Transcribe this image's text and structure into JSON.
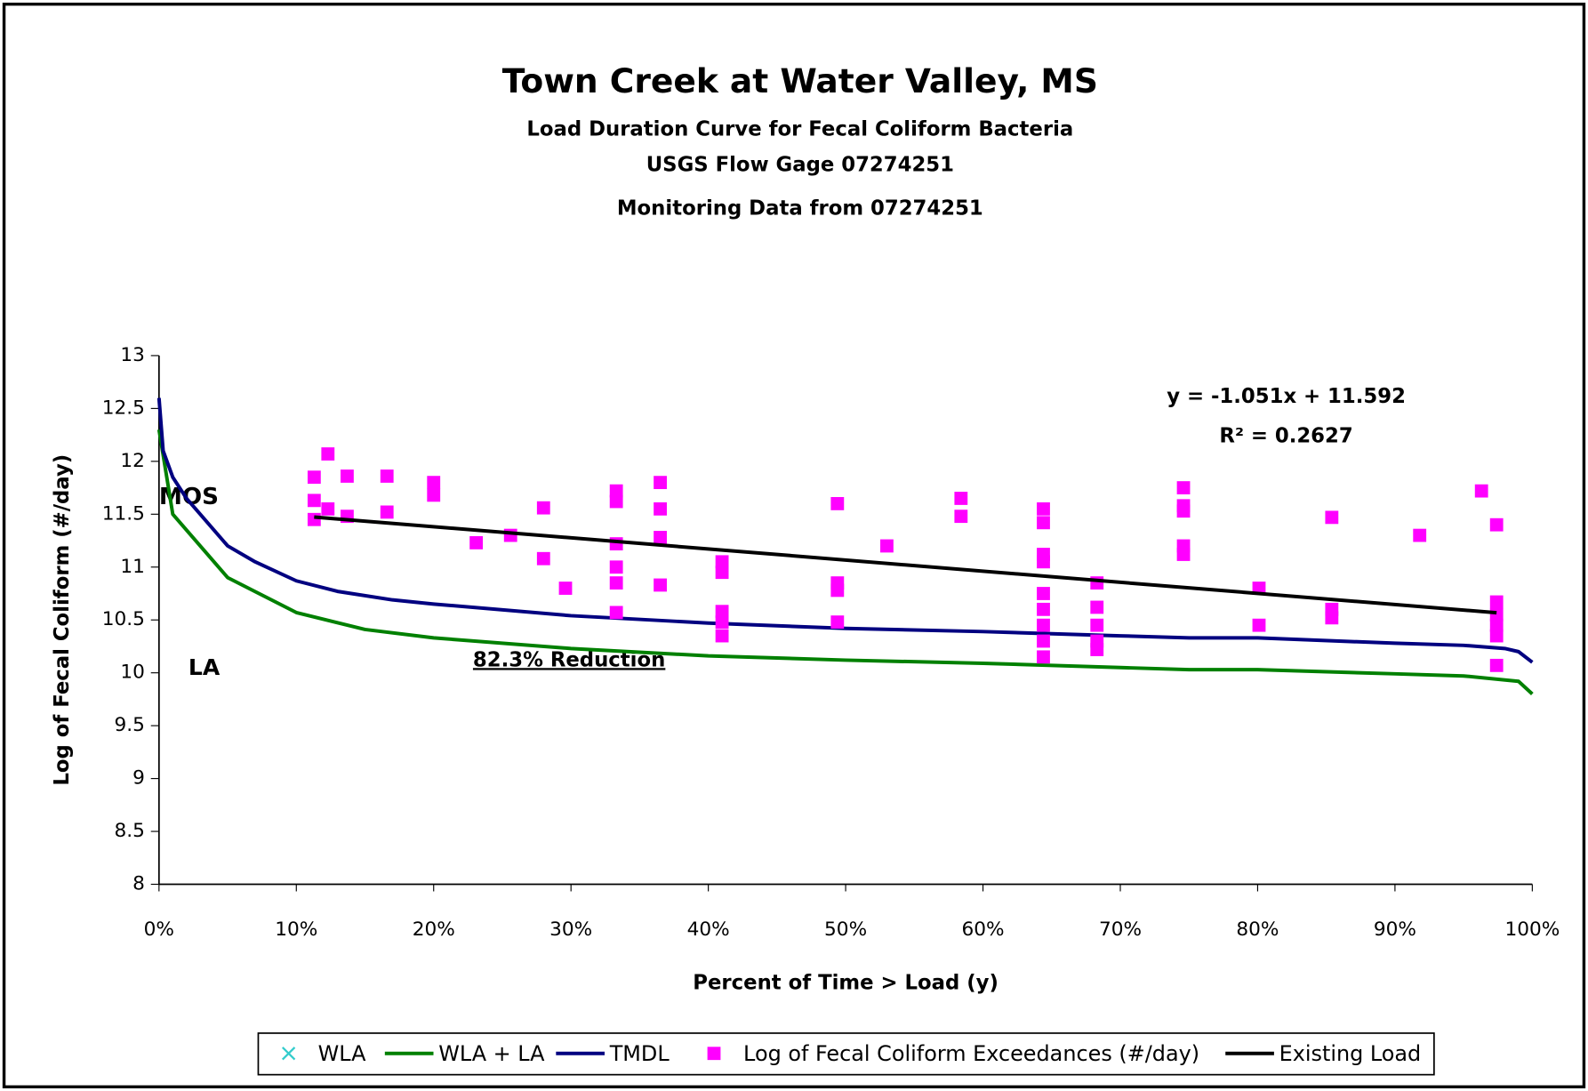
{
  "chart_data": {
    "type": "line",
    "title": "Town Creek at Water Valley, MS",
    "subtitles": [
      "Load Duration Curve for Fecal Coliform Bacteria",
      "USGS Flow Gage 07274251",
      "Monitoring Data from 07274251"
    ],
    "x_label": "Percent of Time > Load (y)",
    "y_label": "Log of Fecal Coliform (#/day)",
    "annotations": [
      "y = -1.051x + 11.592",
      "R² = 0.2627",
      "MOS",
      "LA",
      "82.3% Reduction"
    ],
    "xlim": [
      0,
      1
    ],
    "ylim": [
      8,
      13
    ],
    "xticks": [
      {
        "value": 0,
        "label": "0%"
      },
      {
        "value": 0.1,
        "label": "10%"
      },
      {
        "value": 0.2,
        "label": "20%"
      },
      {
        "value": 0.3,
        "label": "30%"
      },
      {
        "value": 0.4,
        "label": "40%"
      },
      {
        "value": 0.5,
        "label": "50%"
      },
      {
        "value": 0.6,
        "label": "60%"
      },
      {
        "value": 0.7,
        "label": "70%"
      },
      {
        "value": 0.8,
        "label": "80%"
      },
      {
        "value": 0.9,
        "label": "90%"
      },
      {
        "value": 1,
        "label": "100%"
      }
    ],
    "yticks": [
      8,
      8.5,
      9,
      9.5,
      10,
      10.5,
      11,
      11.5,
      12,
      12.5,
      13
    ],
    "series": [
      {
        "name": "WLA",
        "type": "scatter",
        "marker": "x",
        "color": "#33cccc",
        "x": [],
        "values": []
      },
      {
        "name": "WLA + LA",
        "type": "line",
        "color": "#008000",
        "x": [
          0,
          0.005,
          0.01,
          0.05,
          0.1,
          0.15,
          0.2,
          0.3,
          0.4,
          0.5,
          0.6,
          0.7,
          0.75,
          0.8,
          0.9,
          0.95,
          0.99,
          1
        ],
        "values": [
          12.3,
          11.9,
          11.5,
          10.9,
          10.57,
          10.41,
          10.33,
          10.23,
          10.16,
          10.12,
          10.09,
          10.05,
          10.03,
          10.03,
          9.99,
          9.97,
          9.92,
          9.8
        ]
      },
      {
        "name": "TMDL",
        "type": "line",
        "color": "#000080",
        "x": [
          0,
          0.003,
          0.01,
          0.02,
          0.05,
          0.07,
          0.1,
          0.13,
          0.17,
          0.2,
          0.3,
          0.4,
          0.5,
          0.6,
          0.7,
          0.75,
          0.8,
          0.9,
          0.95,
          0.98,
          0.99,
          1
        ],
        "values": [
          12.6,
          12.1,
          11.85,
          11.65,
          11.2,
          11.05,
          10.87,
          10.77,
          10.69,
          10.65,
          10.54,
          10.47,
          10.42,
          10.39,
          10.35,
          10.33,
          10.33,
          10.28,
          10.26,
          10.23,
          10.2,
          10.1
        ]
      },
      {
        "name": "Log of Fecal Coliform Exceedances (#/day)",
        "type": "scatter",
        "marker": "square",
        "color": "#ff00ff",
        "x": [
          0.113,
          0.113,
          0.113,
          0.123,
          0.123,
          0.137,
          0.137,
          0.166,
          0.166,
          0.2,
          0.2,
          0.231,
          0.256,
          0.28,
          0.28,
          0.296,
          0.333,
          0.333,
          0.333,
          0.333,
          0.333,
          0.333,
          0.365,
          0.365,
          0.365,
          0.365,
          0.41,
          0.41,
          0.41,
          0.41,
          0.41,
          0.494,
          0.494,
          0.494,
          0.494,
          0.53,
          0.584,
          0.584,
          0.644,
          0.644,
          0.644,
          0.644,
          0.644,
          0.644,
          0.644,
          0.644,
          0.644,
          0.683,
          0.683,
          0.683,
          0.683,
          0.683,
          0.746,
          0.746,
          0.746,
          0.746,
          0.746,
          0.801,
          0.801,
          0.854,
          0.854,
          0.854,
          0.918,
          0.963,
          0.974,
          0.974,
          0.974,
          0.974,
          0.974,
          0.974
        ],
        "values": [
          11.85,
          11.63,
          11.45,
          12.07,
          11.55,
          11.86,
          11.48,
          11.86,
          11.52,
          11.8,
          11.68,
          11.23,
          11.3,
          11.56,
          11.08,
          10.8,
          11.72,
          11.62,
          11.22,
          11.0,
          10.85,
          10.57,
          11.8,
          11.55,
          11.28,
          10.83,
          11.05,
          10.95,
          10.58,
          10.48,
          10.35,
          11.6,
          10.85,
          10.78,
          10.48,
          11.2,
          11.65,
          11.48,
          11.55,
          11.42,
          11.12,
          11.05,
          10.75,
          10.6,
          10.45,
          10.3,
          10.15,
          10.85,
          10.62,
          10.45,
          10.3,
          10.22,
          11.75,
          11.58,
          11.53,
          11.2,
          11.12,
          10.8,
          10.45,
          11.47,
          10.6,
          10.52,
          11.3,
          11.72,
          11.4,
          10.67,
          10.55,
          10.45,
          10.35,
          10.07
        ]
      },
      {
        "name": "Existing Load",
        "type": "line",
        "color": "#000000",
        "x": [
          0.113,
          0.974
        ],
        "values": [
          11.473,
          10.568
        ]
      }
    ]
  }
}
